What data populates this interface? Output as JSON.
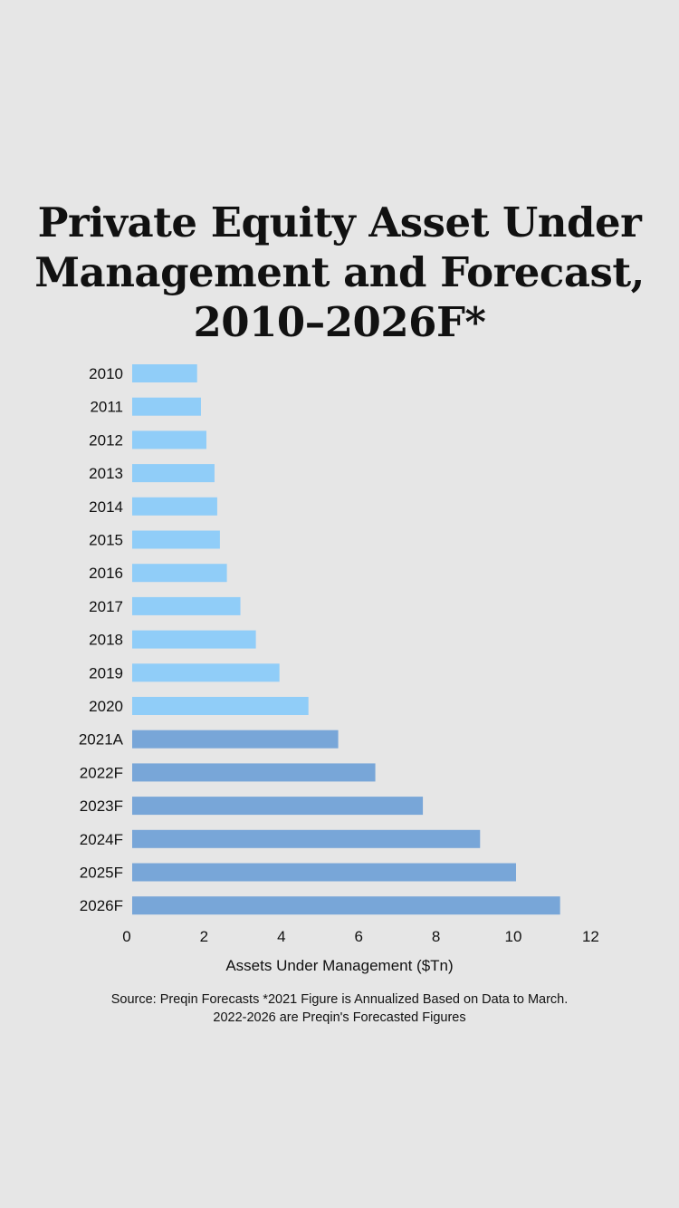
{
  "chart_data": {
    "type": "bar",
    "orientation": "horizontal",
    "title": "Private Equity Asset Under Management and Forecast, 2010–2026F*",
    "xlabel": "Assets Under Management ($Tn)",
    "ylabel": "",
    "xlim": [
      0,
      12
    ],
    "xticks": [
      "0",
      "2",
      "4",
      "6",
      "8",
      "10",
      "12"
    ],
    "grid": false,
    "categories": [
      "2010",
      "2011",
      "2012",
      "2013",
      "2014",
      "2015",
      "2016",
      "2017",
      "2018",
      "2019",
      "2020",
      "2021A",
      "2022F",
      "2023F",
      "2024F",
      "2025F",
      "2026F"
    ],
    "values": [
      1.82,
      1.92,
      2.06,
      2.27,
      2.34,
      2.41,
      2.59,
      2.94,
      3.34,
      3.95,
      4.7,
      5.47,
      6.43,
      7.66,
      9.14,
      10.07,
      11.21
    ],
    "colors": {
      "actual": "#90cdf8",
      "forecast": "#78a6d8"
    },
    "forecast_start_index": 11,
    "source": "Source: Preqin Forecasts *2021 Figure is Annualized Based on Data to March.",
    "source_line2": "2022-2026 are Preqin's Forecasted Figures"
  }
}
